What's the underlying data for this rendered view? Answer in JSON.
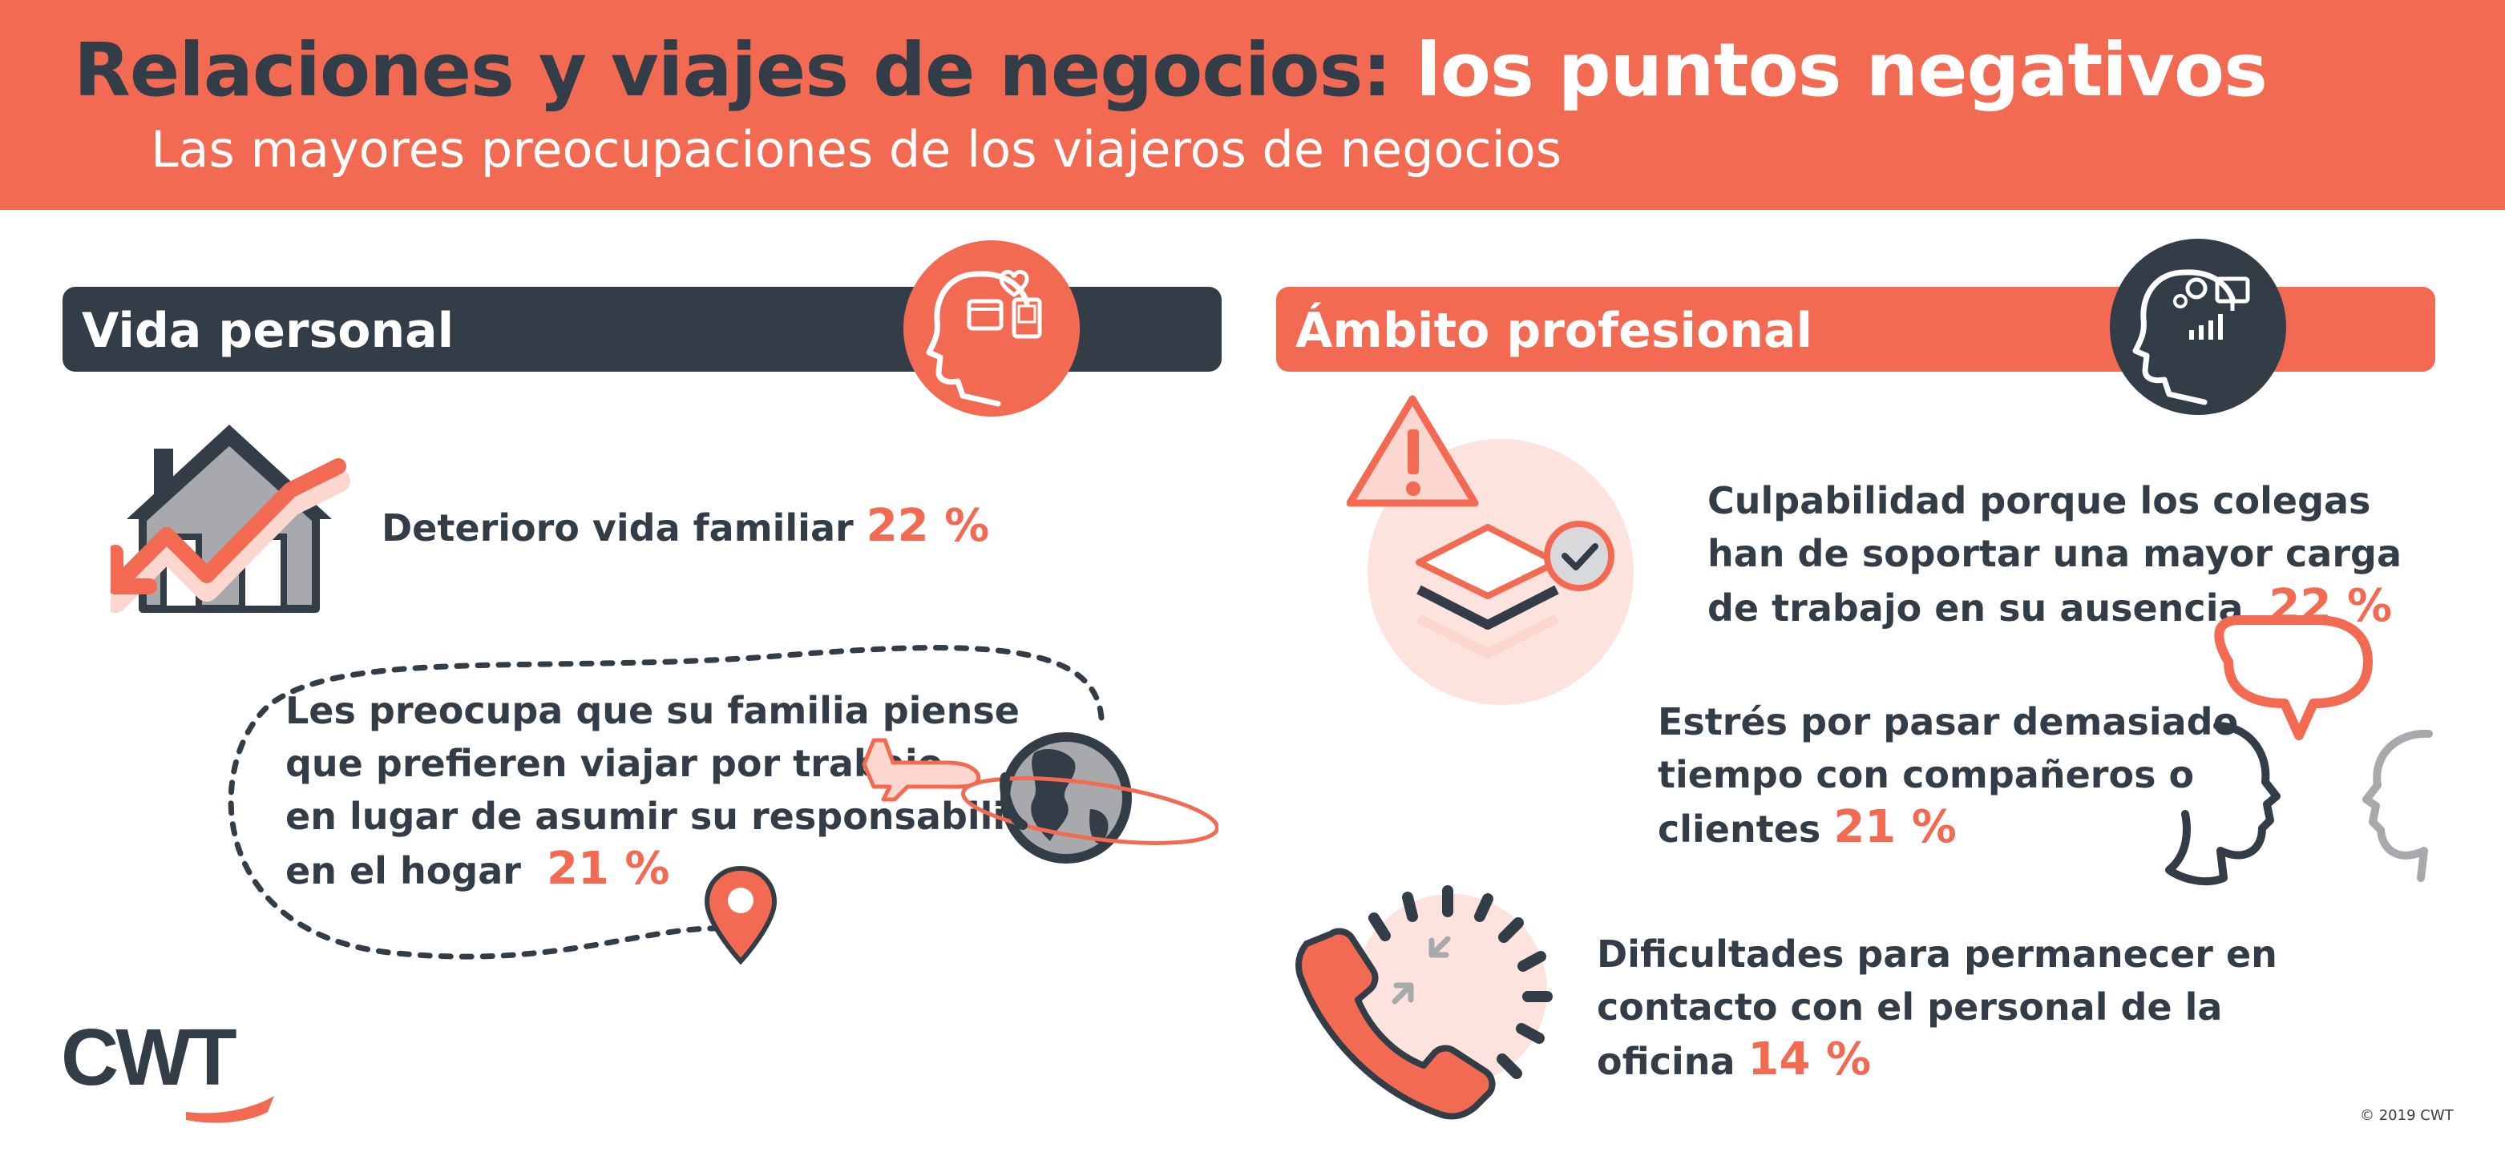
{
  "header": {
    "title_dark": "Relaciones y viajes de negocios:",
    "title_light": "los puntos negativos",
    "subtitle": "Las mayores preocupaciones de los viajeros de negocios"
  },
  "personal": {
    "heading": "Vida personal",
    "family": {
      "text": "Deterioro vida familiar",
      "pct": "22 %"
    },
    "preference": {
      "lines": [
        "Les preocupa que su familia piense",
        "que prefieren viajar por trabajo",
        "en lugar de asumir su responsabilidad",
        "en el hogar"
      ],
      "pct": "21 %"
    }
  },
  "professional": {
    "heading": "Ámbito profesional",
    "guilt": {
      "lines": [
        "Culpabilidad porque los colegas",
        "han de soportar una mayor carga",
        "de trabajo en su ausencia"
      ],
      "pct": "22 %"
    },
    "stress": {
      "lines": [
        "Estrés por pasar demasiado",
        "tiempo con compañeros o",
        "clientes"
      ],
      "pct": "21 %"
    },
    "contact": {
      "lines": [
        "Dificultades para permanecer en",
        "contacto con el personal de la",
        "oficina"
      ],
      "pct": "14 %"
    }
  },
  "brand": {
    "logo": "CWT",
    "copyright": "© 2019 CWT"
  },
  "colors": {
    "accent": "#f36a52",
    "dark": "#333d47",
    "pink": "#fce3de",
    "gray": "#a7a9ac"
  }
}
